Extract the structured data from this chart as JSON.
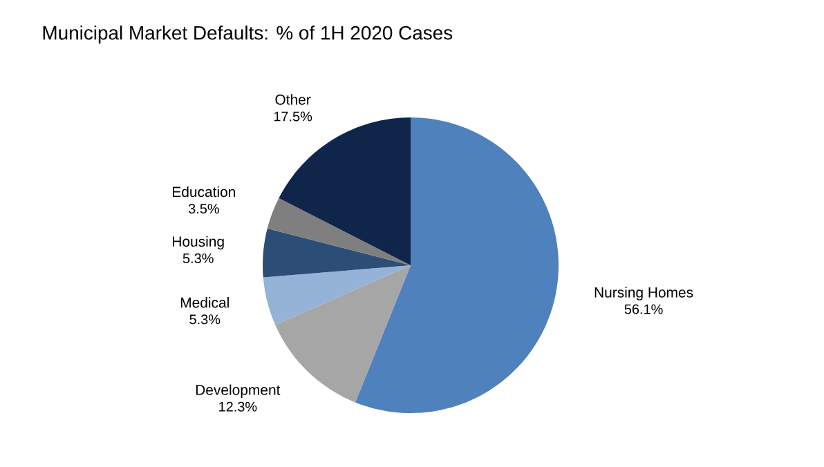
{
  "chart_data": {
    "type": "pie",
    "title": "Municipal Market Defaults: % of 1H 2020 Cases",
    "categories": [
      "Nursing Homes",
      "Development",
      "Medical",
      "Housing",
      "Education",
      "Other"
    ],
    "values": [
      56.1,
      12.3,
      5.3,
      5.3,
      3.5,
      17.5
    ],
    "value_labels": [
      "56.1%",
      "12.3%",
      "5.3%",
      "5.3%",
      "3.5%",
      "17.5%"
    ],
    "colors": [
      "#4f81bd",
      "#a6a6a6",
      "#95b3d7",
      "#2c4d75",
      "#7f7f7f",
      "#10254a"
    ]
  }
}
